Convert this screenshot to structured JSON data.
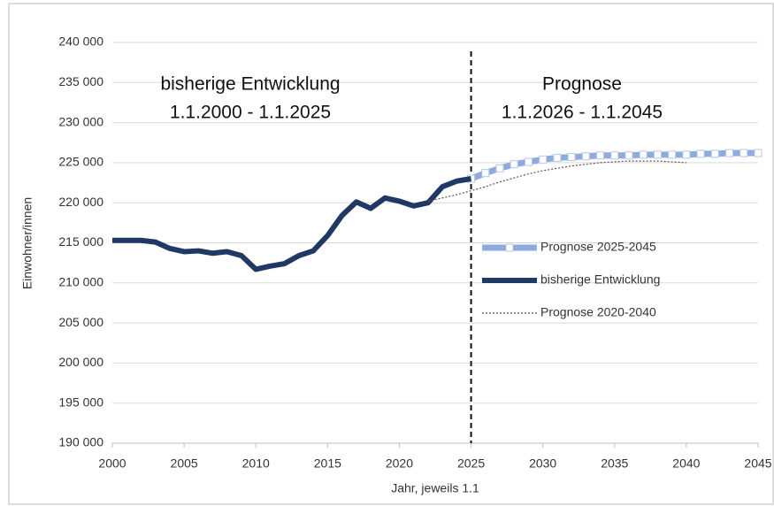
{
  "chart_data": {
    "type": "line",
    "x_label": "Jahr, jeweils 1.1",
    "y_label": "Einwohner/innen",
    "annotations": [
      {
        "lines": [
          "bisherige Entwicklung",
          "1.1.2000 - 1.1.2025"
        ]
      },
      {
        "lines": [
          "Prognose",
          "1.1.2026 - 1.1.2045"
        ]
      }
    ],
    "reference_line": {
      "x": 2025
    },
    "x": [
      2000,
      2001,
      2002,
      2003,
      2004,
      2005,
      2006,
      2007,
      2008,
      2009,
      2010,
      2011,
      2012,
      2013,
      2014,
      2015,
      2016,
      2017,
      2018,
      2019,
      2020,
      2021,
      2022,
      2023,
      2024,
      2025,
      2026,
      2027,
      2028,
      2029,
      2030,
      2031,
      2032,
      2033,
      2034,
      2035,
      2036,
      2037,
      2038,
      2039,
      2040,
      2041,
      2042,
      2043,
      2044,
      2045
    ],
    "series": [
      {
        "name": "Prognose 2025-2045",
        "color": "#8faadc",
        "style": "markers",
        "values": [
          null,
          null,
          null,
          null,
          null,
          null,
          null,
          null,
          null,
          null,
          null,
          null,
          null,
          null,
          null,
          null,
          null,
          null,
          null,
          null,
          null,
          null,
          null,
          null,
          null,
          223000,
          223700,
          224300,
          224800,
          225100,
          225400,
          225600,
          225700,
          225800,
          225900,
          225900,
          225900,
          226000,
          226000,
          226000,
          226000,
          226100,
          226100,
          226200,
          226200,
          226200
        ]
      },
      {
        "name": "bisherige Entwicklung",
        "color": "#203864",
        "style": "thick",
        "values": [
          215300,
          215300,
          215300,
          215100,
          214300,
          213900,
          214000,
          213700,
          213900,
          213400,
          211700,
          212100,
          212400,
          213400,
          214000,
          215900,
          218400,
          220100,
          219300,
          220600,
          220200,
          219600,
          220000,
          222000,
          222700,
          223000,
          null,
          null,
          null,
          null,
          null,
          null,
          null,
          null,
          null,
          null,
          null,
          null,
          null,
          null,
          null,
          null,
          null,
          null,
          null,
          null
        ]
      },
      {
        "name": "Prognose 2020-2040",
        "color": "#555555",
        "style": "dotted",
        "values": [
          null,
          null,
          null,
          null,
          null,
          null,
          null,
          null,
          null,
          null,
          null,
          null,
          null,
          null,
          null,
          null,
          null,
          null,
          null,
          null,
          null,
          null,
          220200,
          220600,
          221000,
          221500,
          222000,
          222600,
          223100,
          223600,
          224000,
          224300,
          224600,
          224800,
          225000,
          225100,
          225200,
          225200,
          225200,
          225100,
          225000,
          null,
          null,
          null,
          null,
          null
        ]
      }
    ],
    "xlim": [
      2000,
      2045
    ],
    "xticks": [
      2000,
      2005,
      2010,
      2015,
      2020,
      2025,
      2030,
      2035,
      2040,
      2045
    ],
    "ylim": [
      190000,
      240000
    ],
    "yticks": [
      {
        "value": 190000,
        "label": "190 000"
      },
      {
        "value": 195000,
        "label": "195 000"
      },
      {
        "value": 200000,
        "label": "200 000"
      },
      {
        "value": 205000,
        "label": "205 000"
      },
      {
        "value": 210000,
        "label": "210 000"
      },
      {
        "value": 215000,
        "label": "215 000"
      },
      {
        "value": 220000,
        "label": "220 000"
      },
      {
        "value": 225000,
        "label": "225 000"
      },
      {
        "value": 230000,
        "label": "230 000"
      },
      {
        "value": 235000,
        "label": "235 000"
      },
      {
        "value": 240000,
        "label": "240 000"
      }
    ],
    "grid": true,
    "legend": "center-right"
  }
}
